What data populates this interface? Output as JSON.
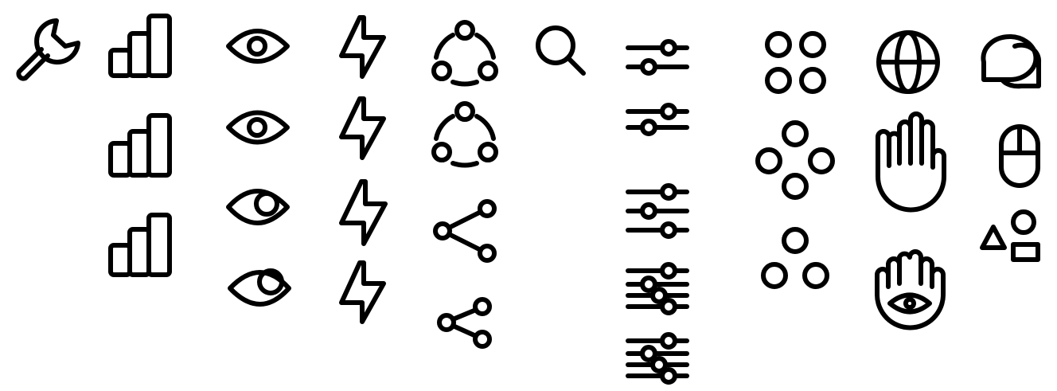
{
  "theme": {
    "background": "#ffffff",
    "stroke": "#000000"
  },
  "icons": [
    {
      "name": "wrench-icon"
    },
    {
      "name": "signal-bars-icon"
    },
    {
      "name": "signal-bars-icon"
    },
    {
      "name": "signal-bars-icon"
    },
    {
      "name": "eye-icon"
    },
    {
      "name": "eye-icon"
    },
    {
      "name": "eye-icon"
    },
    {
      "name": "eye-icon"
    },
    {
      "name": "lightning-bolt-icon"
    },
    {
      "name": "lightning-bolt-icon"
    },
    {
      "name": "lightning-bolt-icon"
    },
    {
      "name": "lightning-bolt-icon"
    },
    {
      "name": "circles-triangle-icon"
    },
    {
      "name": "circles-triangle-icon"
    },
    {
      "name": "share-icon"
    },
    {
      "name": "share-icon"
    },
    {
      "name": "search-icon"
    },
    {
      "name": "sliders-icon"
    },
    {
      "name": "sliders-icon"
    },
    {
      "name": "sliders-icon"
    },
    {
      "name": "sliders-icon"
    },
    {
      "name": "sliders-icon"
    },
    {
      "name": "four-circles-icon"
    },
    {
      "name": "four-circles-diamond-icon"
    },
    {
      "name": "three-circles-icon"
    },
    {
      "name": "globe-icon"
    },
    {
      "name": "hand-icon"
    },
    {
      "name": "hamsa-hand-icon"
    },
    {
      "name": "chat-bubbles-icon"
    },
    {
      "name": "mouse-icon"
    },
    {
      "name": "shapes-icon"
    }
  ]
}
